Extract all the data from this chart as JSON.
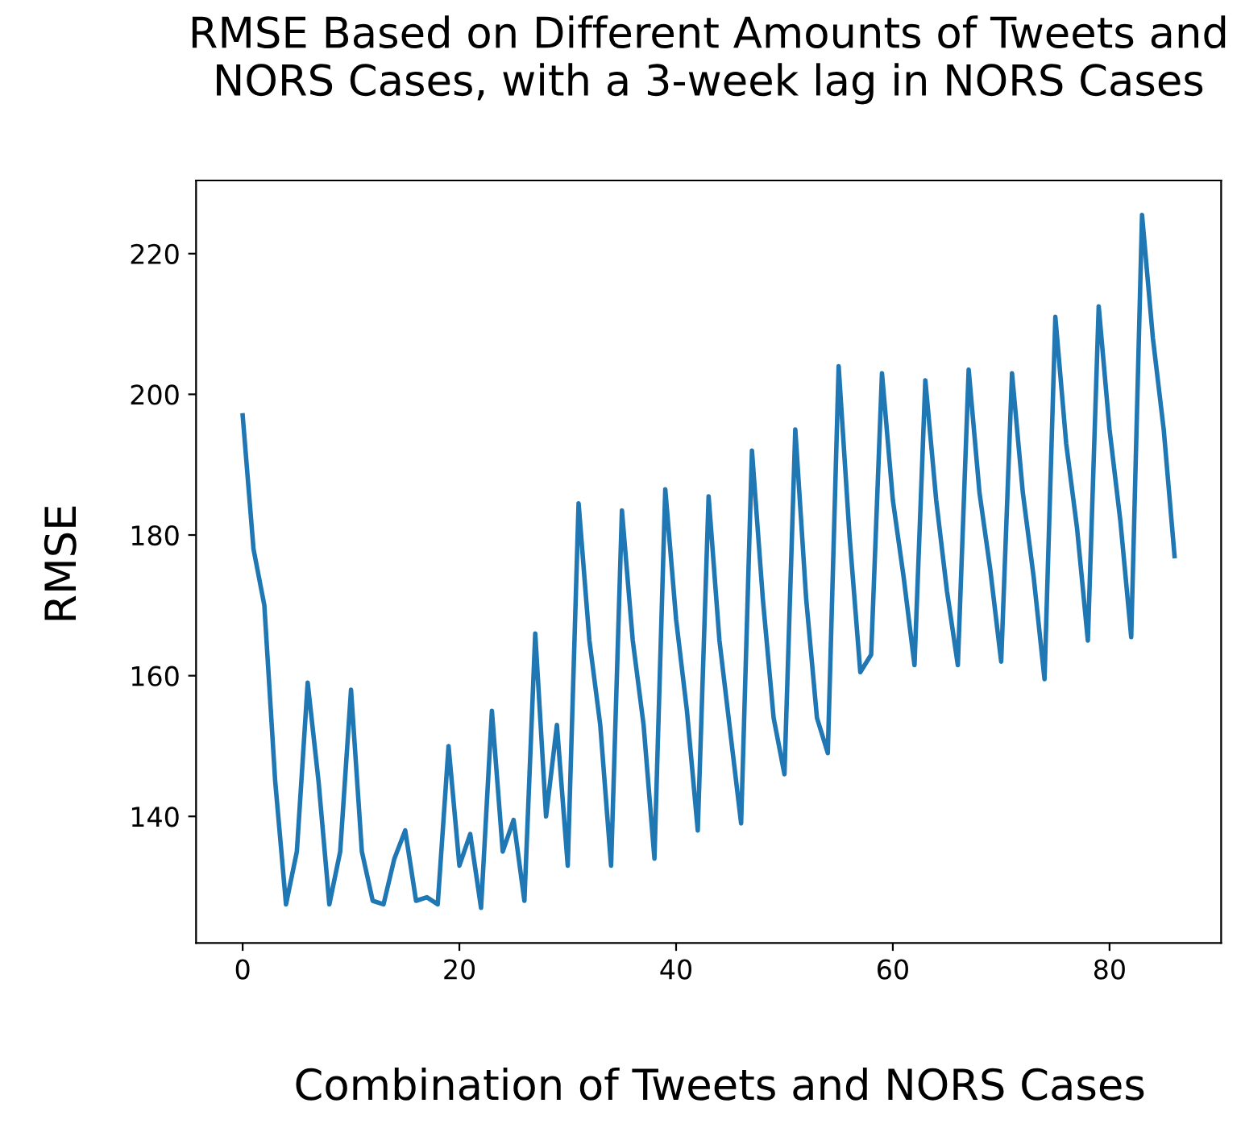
{
  "chart_data": {
    "type": "line",
    "title": "RMSE Based on Different Amounts of Tweets and\nNORS Cases, with a 3-week lag in NORS Cases",
    "xlabel": "Combination of Tweets and NORS Cases",
    "ylabel": "RMSE",
    "x": [
      0,
      1,
      2,
      3,
      4,
      5,
      6,
      7,
      8,
      9,
      10,
      11,
      12,
      13,
      14,
      15,
      16,
      17,
      18,
      19,
      20,
      21,
      22,
      23,
      24,
      25,
      26,
      27,
      28,
      29,
      30,
      31,
      32,
      33,
      34,
      35,
      36,
      37,
      38,
      39,
      40,
      41,
      42,
      43,
      44,
      45,
      46,
      47,
      48,
      49,
      50,
      51,
      52,
      53,
      54,
      55,
      56,
      57,
      58,
      59,
      60,
      61,
      62,
      63,
      64,
      65,
      66,
      67,
      68,
      69,
      70,
      71,
      72,
      73,
      74,
      75,
      76,
      77,
      78,
      79,
      80,
      81,
      82,
      83,
      84,
      85,
      86
    ],
    "series": [
      {
        "color": "#1f77b4",
        "values": [
          197,
          178,
          170,
          145,
          127.5,
          135,
          159,
          145,
          127.5,
          135,
          158,
          135,
          128,
          127.5,
          134,
          138,
          128,
          128.5,
          127.5,
          150,
          133,
          137.5,
          127,
          155,
          135,
          139.5,
          128,
          166,
          140,
          153,
          133,
          184.5,
          165,
          153,
          133,
          183.5,
          165,
          153,
          134,
          186.5,
          168,
          155,
          138,
          185.5,
          165,
          152,
          139,
          192,
          171,
          154,
          146,
          195,
          171,
          154,
          149,
          204,
          180,
          160.5,
          163,
          203,
          185,
          174,
          161.5,
          202,
          185,
          172,
          161.5,
          203.5,
          186,
          175,
          162,
          203,
          186,
          174,
          159.5,
          211,
          193,
          181,
          165,
          212.5,
          195,
          182,
          165.5,
          225.5,
          208,
          195,
          177
        ]
      }
    ],
    "xlim": [
      -4.3,
      90.3
    ],
    "ylim": [
      122,
      230.4
    ],
    "xticks": [
      0,
      20,
      40,
      60,
      80
    ],
    "yticks": [
      140,
      160,
      180,
      200,
      220
    ],
    "grid": false,
    "legend": false,
    "marker": "none",
    "line_style": "solid"
  }
}
